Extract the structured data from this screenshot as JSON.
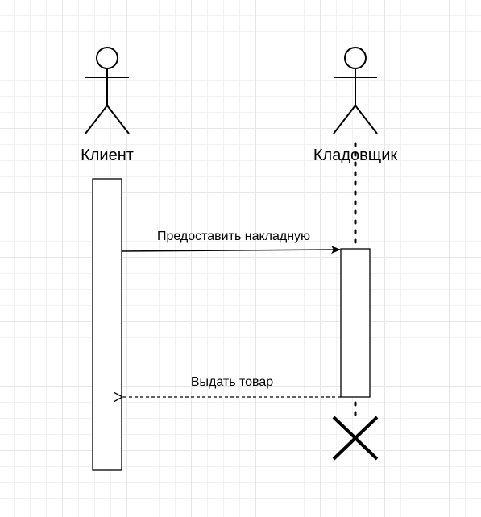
{
  "actors": [
    {
      "name": "Клиент"
    },
    {
      "name": "Кладовщик"
    }
  ],
  "messages": [
    {
      "label": "Предоставить накладную",
      "type": "sync"
    },
    {
      "label": "Выдать товар",
      "type": "return"
    }
  ]
}
